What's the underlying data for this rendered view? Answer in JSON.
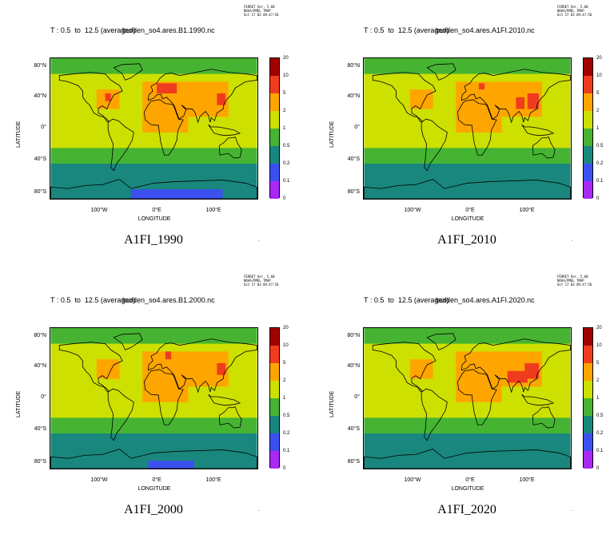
{
  "legend": {
    "labels": [
      "20",
      "10",
      "5",
      "2",
      "1",
      "0.5",
      "0.2",
      "0.1",
      "0"
    ],
    "colors": [
      "#a00000",
      "#f03c1e",
      "#ffa500",
      "#cde000",
      "#46b432",
      "#19877d",
      "#3c50f0",
      "#aa28f5"
    ]
  },
  "axes": {
    "lat_ticks": [
      "80°N",
      "40°N",
      "0°",
      "40°S",
      "80°S"
    ],
    "lon_ticks": [
      "100°W",
      "0°E",
      "100°E"
    ],
    "ylabel": "LATITUDE",
    "xlabel": "LONGITUDE"
  },
  "ferret": [
    "FERRET Ver. 5.60",
    "NOAA/PMEL TMAP",
    "Oct 17 03 09:47:56"
  ],
  "panels": [
    {
      "id": "1990",
      "title": "T : 0.5  to  12.5 (averaged)",
      "file": "burden_so4.ares.B1.1990.nc",
      "case": "A1FI_1990",
      "ferret_date": "Oct 17 03 09:47:56"
    },
    {
      "id": "2010",
      "title": "T : 0.5  to  12.5 (averaged)",
      "file": "burden_so4.ares.A1FI.2010.nc",
      "case": "A1FI_2010",
      "ferret_date": "Oct 17 03 09:47:56"
    },
    {
      "id": "2000",
      "title": "T : 0.5  to  12.5 (averaged)",
      "file": "burden_so4.ares.B1.2000.nc",
      "case": "A1FI_2000",
      "ferret_date": "Oct 17 03 09:47:56"
    },
    {
      "id": "2020",
      "title": "T : 0.5  to  12.5 (averaged)",
      "file": "burden_so4.ares.A1FI.2020.nc",
      "case": "A1FI_2020",
      "ferret_date": "Oct 17 03 09:47:56"
    }
  ]
}
